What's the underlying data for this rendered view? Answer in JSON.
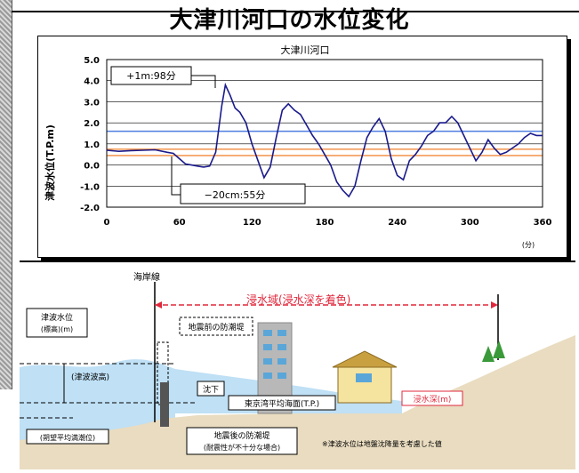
{
  "page": {
    "title": "大津川河口の水位変化"
  },
  "chart_data": {
    "type": "line",
    "title": "大津川河口",
    "ylabel": "津波水位(T.P.m)",
    "xunit": "(分)",
    "xlim": [
      0,
      360
    ],
    "ylim": [
      -2.0,
      5.0
    ],
    "xticks": [
      0,
      60,
      120,
      180,
      240,
      300,
      360
    ],
    "xtick_labels": [
      "0",
      "60",
      "120",
      "180",
      "240",
      "300",
      "360"
    ],
    "yticks": [
      -2.0,
      -1.0,
      0.0,
      1.0,
      2.0,
      3.0,
      4.0,
      5.0
    ],
    "ytick_labels": [
      "-2.0",
      "-1.0",
      "0.0",
      "1.0",
      "2.0",
      "3.0",
      "4.0",
      "5.0"
    ],
    "grid": true,
    "ref_lines": [
      {
        "y": 1.6,
        "color": "#4f7fe0"
      },
      {
        "y": 0.75,
        "color": "#f08a3c"
      },
      {
        "y": 0.45,
        "color": "#f08a3c"
      }
    ],
    "series": [
      {
        "color": "#1a1a8c",
        "x": [
          0,
          10,
          20,
          30,
          40,
          50,
          55,
          60,
          65,
          70,
          75,
          80,
          85,
          90,
          95,
          98,
          102,
          106,
          110,
          115,
          120,
          125,
          130,
          135,
          140,
          145,
          150,
          155,
          160,
          165,
          170,
          175,
          180,
          185,
          190,
          195,
          200,
          205,
          210,
          215,
          220,
          225,
          230,
          235,
          240,
          245,
          250,
          255,
          260,
          265,
          270,
          275,
          280,
          285,
          290,
          295,
          300,
          305,
          310,
          315,
          320,
          325,
          330,
          335,
          340,
          345,
          350,
          355,
          360
        ],
        "y": [
          0.7,
          0.65,
          0.68,
          0.7,
          0.72,
          0.6,
          0.55,
          0.3,
          0.05,
          0.0,
          -0.05,
          -0.1,
          -0.05,
          0.6,
          2.8,
          3.8,
          3.3,
          2.7,
          2.5,
          2.0,
          1.0,
          0.2,
          -0.6,
          -0.1,
          1.3,
          2.6,
          2.9,
          2.6,
          2.4,
          1.9,
          1.4,
          1.0,
          0.5,
          0.0,
          -0.8,
          -1.2,
          -1.5,
          -1.0,
          0.2,
          1.3,
          1.8,
          2.2,
          1.6,
          0.3,
          -0.5,
          -0.7,
          0.2,
          0.5,
          0.9,
          1.4,
          1.6,
          2.0,
          2.0,
          2.3,
          2.0,
          1.4,
          0.8,
          0.2,
          0.6,
          1.2,
          0.8,
          0.5,
          0.6,
          0.8,
          1.0,
          1.3,
          1.5,
          1.4,
          1.4
        ]
      }
    ],
    "annotations": [
      {
        "text": "+1m:98分",
        "x": 98,
        "y": 3.8
      },
      {
        "text": "−20cm:55分",
        "x": 55,
        "y": 0.55
      }
    ]
  },
  "diagram": {
    "coastline_label": "海岸線",
    "inundation_area_label": "浸水域(浸水深を着色)",
    "tsunami_level_label": "津波水位",
    "tsunami_level_sub": "(標高)(m)",
    "before_quake_levee": "地震前の防潮堤",
    "tsunami_height_label": "(津波波高)",
    "subsidence_label": "沈下",
    "msl_label": "東京湾平均海面(T.P.)",
    "tide_level_label": "(朔望平均満潮位)",
    "after_quake_levee_1": "地震後の防潮堤",
    "after_quake_levee_2": "(耐震性が不十分な場合)",
    "inundation_depth_label": "浸水深(m)",
    "footnote": "※津波水位は地盤沈降量を考慮した値"
  }
}
